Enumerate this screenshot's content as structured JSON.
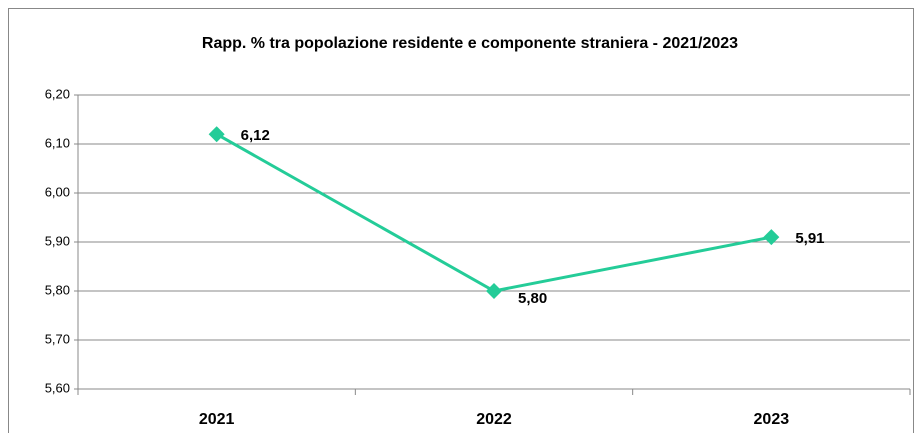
{
  "chart_data": {
    "type": "line",
    "title": "Rapp. % tra popolazione residente e componente straniera - 2021/2023",
    "categories": [
      "2021",
      "2022",
      "2023"
    ],
    "series": [
      {
        "color": "#24cc98",
        "values": [
          6.12,
          5.8,
          5.91
        ],
        "value_labels": [
          "6,12",
          "5,80",
          "5,91"
        ]
      }
    ],
    "ylim": [
      5.6,
      6.2
    ],
    "yticks": [
      {
        "value": 5.6,
        "label": "5,60"
      },
      {
        "value": 5.7,
        "label": "5,70"
      },
      {
        "value": 5.8,
        "label": "5,80"
      },
      {
        "value": 5.9,
        "label": "5,90"
      },
      {
        "value": 6.0,
        "label": "6,00"
      },
      {
        "value": 6.1,
        "label": "6,10"
      },
      {
        "value": 6.2,
        "label": "6,20"
      }
    ],
    "grid": true
  }
}
